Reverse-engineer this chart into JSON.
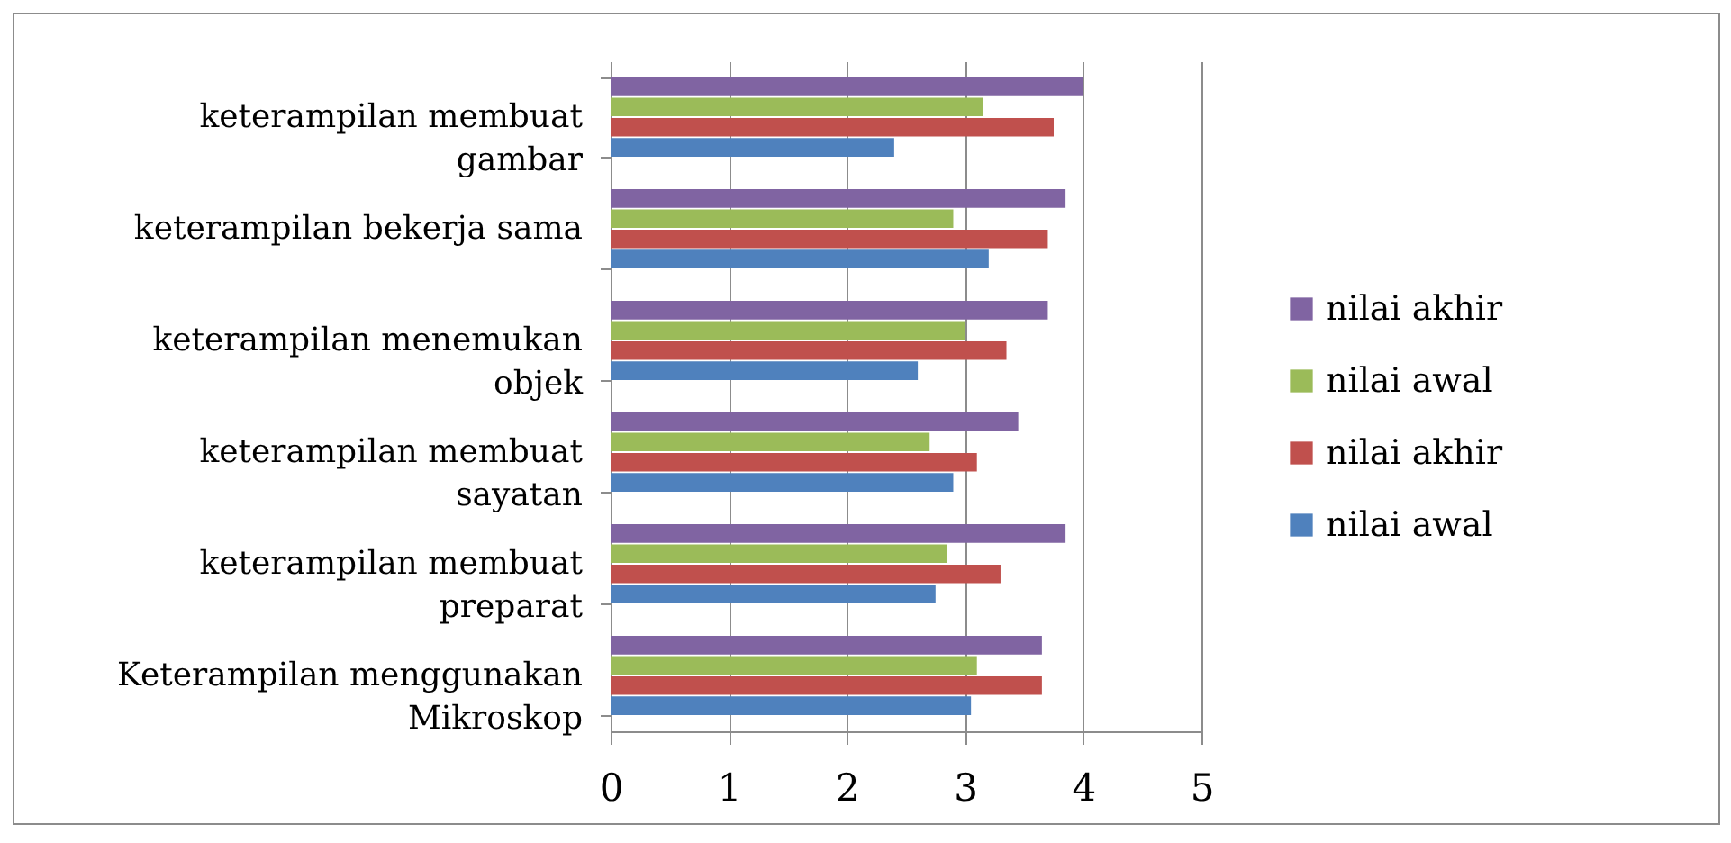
{
  "chart_data": {
    "type": "bar",
    "orientation": "horizontal",
    "categories": [
      "keterampilan membuat gambar",
      "keterampilan bekerja sama",
      "keterampilan menemukan objek",
      "keterampilan membuat sayatan",
      "keterampilan membuat preparat",
      "Keterampilan menggunakan Mikroskop"
    ],
    "series": [
      {
        "name": "nilai akhir",
        "color": "#8064a2",
        "values": [
          4.0,
          3.85,
          3.7,
          3.45,
          3.85,
          3.65
        ]
      },
      {
        "name": "nilai awal",
        "color": "#9bbb59",
        "values": [
          3.15,
          2.9,
          3.0,
          2.7,
          2.85,
          3.1
        ]
      },
      {
        "name": "nilai akhir",
        "color": "#c0504d",
        "values": [
          3.75,
          3.7,
          3.35,
          3.1,
          3.3,
          3.65
        ]
      },
      {
        "name": "nilai awal",
        "color": "#4f81bd",
        "values": [
          2.4,
          3.2,
          2.6,
          2.9,
          2.75,
          3.05
        ]
      }
    ],
    "xlim": [
      0,
      5
    ],
    "xticks": [
      0,
      1,
      2,
      3,
      4,
      5
    ],
    "grid": "x",
    "legend": "right"
  }
}
